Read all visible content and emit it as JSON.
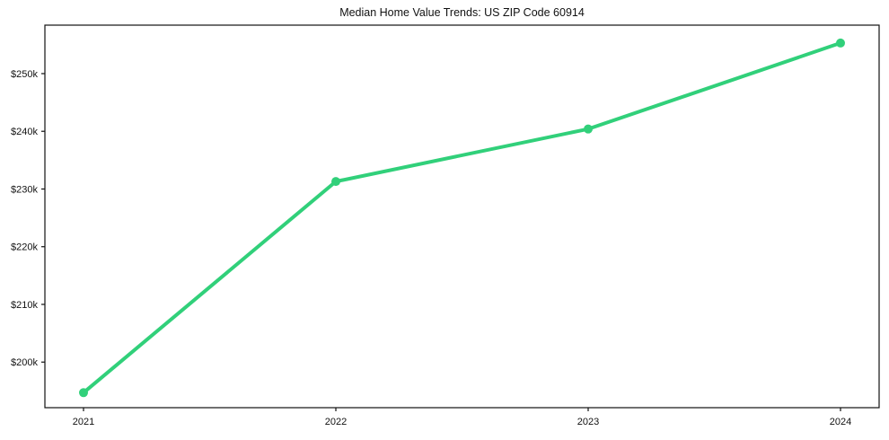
{
  "chart_data": {
    "type": "line",
    "title": "Median Home Value Trends: US ZIP Code 60914",
    "xlabel": "",
    "ylabel": "",
    "x": [
      2021,
      2022,
      2023,
      2024
    ],
    "x_tick_labels": [
      "2021",
      "2022",
      "2023",
      "2024"
    ],
    "series": [
      {
        "name": "Median Home Value",
        "values": [
          194700,
          231300,
          240400,
          255300
        ]
      }
    ],
    "y_ticks": [
      {
        "value": 200000,
        "label": "$200k"
      },
      {
        "value": 210000,
        "label": "$210k"
      },
      {
        "value": 220000,
        "label": "$220k"
      },
      {
        "value": 230000,
        "label": "$230k"
      },
      {
        "value": 240000,
        "label": "$240k"
      },
      {
        "value": 250000,
        "label": "$250k"
      }
    ],
    "ylim": [
      192100,
      258400
    ],
    "grid": false,
    "legend": null,
    "line_color": "#31d07a",
    "marker": "circle",
    "marker_color": "#31d07a",
    "spine_color": "#111111",
    "text_color": "#111111",
    "background_color": "#ffffff"
  }
}
